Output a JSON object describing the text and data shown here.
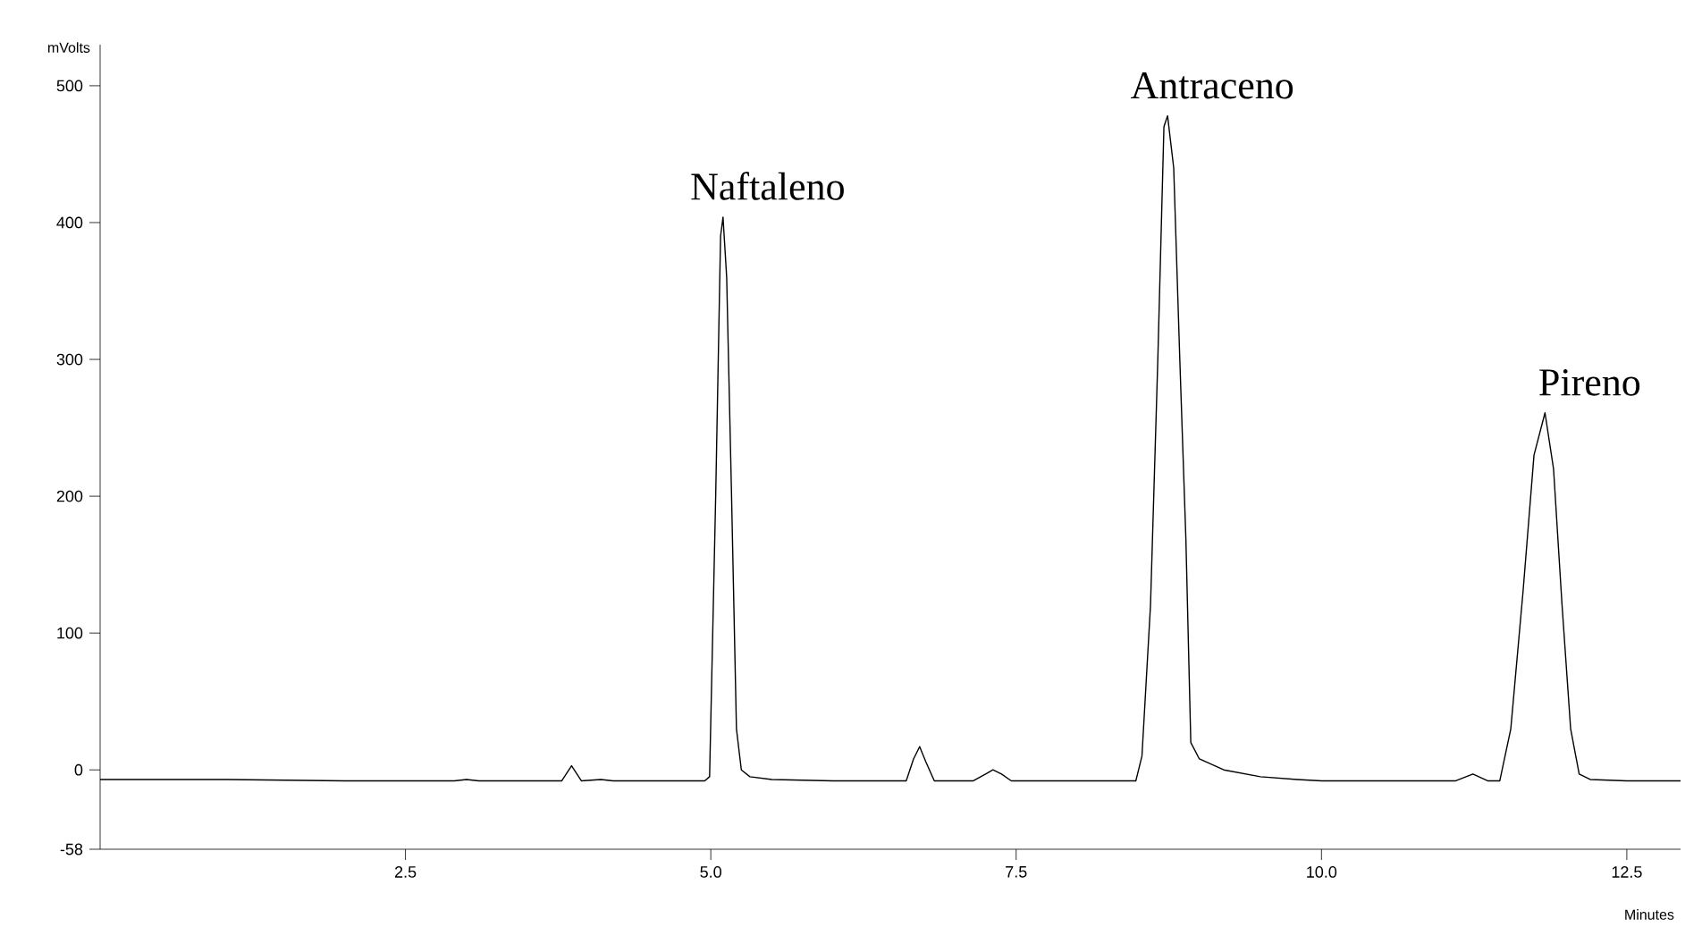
{
  "chart_data": {
    "type": "line",
    "xlabel": "Minutes",
    "ylabel": "mVolts",
    "xlim": [
      0,
      12.94
    ],
    "ylim": [
      -58,
      530
    ],
    "xticks": [
      2.5,
      {
        "value": 5,
        "label": "5.0"
      },
      7.5,
      {
        "value": 10,
        "label": "10.0"
      },
      12.5
    ],
    "yticks": [
      -58,
      0,
      100,
      200,
      300,
      400,
      500
    ],
    "grid": false,
    "legend": false,
    "marker": "none",
    "line_style": "solid",
    "annotations": [
      {
        "text": "Naftaleno",
        "x": 5.1,
        "y": 404
      },
      {
        "text": "Antraceno",
        "x": 8.74,
        "y": 478
      },
      {
        "text": "Pireno",
        "x": 11.83,
        "y": 261
      }
    ],
    "series": [
      {
        "color": "#000000",
        "x": [
          0,
          1,
          2,
          2.9,
          3.0,
          3.1,
          3.78,
          3.86,
          3.94,
          4.1,
          4.2,
          4.95,
          4.99,
          5.04,
          5.08,
          5.1,
          5.13,
          5.17,
          5.21,
          5.25,
          5.32,
          5.5,
          6.0,
          6.6,
          6.66,
          6.71,
          6.76,
          6.83,
          7.15,
          7.25,
          7.31,
          7.38,
          7.46,
          8.0,
          8.48,
          8.53,
          8.6,
          8.66,
          8.71,
          8.74,
          8.79,
          8.84,
          8.89,
          8.93,
          9.0,
          9.2,
          9.5,
          9.8,
          10.0,
          11.1,
          11.24,
          11.36,
          11.46,
          11.55,
          11.65,
          11.74,
          11.83,
          11.9,
          11.97,
          12.04,
          12.11,
          12.2,
          12.5,
          12.94
        ],
        "values": [
          -7,
          -7,
          -8,
          -8,
          -7,
          -8,
          -8,
          3,
          -8,
          -7,
          -8,
          -8,
          -5,
          200,
          390,
          404,
          360,
          200,
          30,
          0,
          -5,
          -7,
          -8,
          -8,
          8,
          17,
          6,
          -8,
          -8,
          -3,
          0,
          -3,
          -8,
          -8,
          -8,
          10,
          120,
          300,
          470,
          478,
          440,
          300,
          168,
          20,
          8,
          0,
          -5,
          -7,
          -8,
          -8,
          -3,
          -8,
          -8,
          30,
          130,
          230,
          261,
          220,
          120,
          30,
          -3,
          -7,
          -8,
          -8
        ]
      }
    ]
  }
}
